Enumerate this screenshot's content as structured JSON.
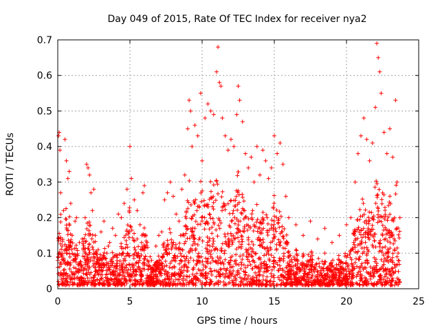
{
  "chart_data": {
    "type": "scatter",
    "title": "Day 049 of 2015, Rate Of TEC Index for receiver nya2",
    "xlabel": "GPS time / hours",
    "ylabel": "ROTI / TECUs",
    "xlim": [
      0,
      25
    ],
    "ylim": [
      0,
      0.7
    ],
    "xticks": [
      0,
      5,
      10,
      15,
      20,
      25
    ],
    "yticks": [
      0,
      0.1,
      0.2,
      0.3,
      0.4,
      0.5,
      0.6,
      0.7
    ],
    "xtick_labels": [
      "0",
      "5",
      "10",
      "15",
      "20",
      "25"
    ],
    "ytick_labels": [
      "0",
      "0.1",
      "0.2",
      "0.3",
      "0.4",
      "0.5",
      "0.6",
      "0.7"
    ],
    "grid": true,
    "marker": "+",
    "marker_color": "#ff0000",
    "x_data_range": [
      0,
      23.7
    ],
    "series": [
      {
        "values": [
          [
            0.0,
            0.06
          ],
          [
            0.05,
            0.43
          ],
          [
            0.1,
            0.44
          ],
          [
            0.15,
            0.39
          ],
          [
            0.2,
            0.27
          ],
          [
            0.3,
            0.12
          ],
          [
            0.4,
            0.22
          ],
          [
            0.5,
            0.42
          ],
          [
            0.6,
            0.36
          ],
          [
            0.7,
            0.31
          ],
          [
            0.8,
            0.33
          ],
          [
            0.9,
            0.24
          ],
          [
            1.0,
            0.15
          ],
          [
            1.1,
            0.08
          ],
          [
            1.2,
            0.19
          ],
          [
            1.3,
            0.2
          ],
          [
            1.5,
            0.07
          ],
          [
            1.7,
            0.14
          ],
          [
            1.9,
            0.2
          ],
          [
            2.0,
            0.35
          ],
          [
            2.1,
            0.34
          ],
          [
            2.2,
            0.32
          ],
          [
            2.3,
            0.27
          ],
          [
            2.4,
            0.22
          ],
          [
            2.5,
            0.28
          ],
          [
            2.6,
            0.15
          ],
          [
            2.8,
            0.11
          ],
          [
            3.0,
            0.16
          ],
          [
            3.2,
            0.19
          ],
          [
            3.4,
            0.1
          ],
          [
            3.6,
            0.13
          ],
          [
            3.8,
            0.17
          ],
          [
            4.0,
            0.15
          ],
          [
            4.2,
            0.21
          ],
          [
            4.4,
            0.2
          ],
          [
            4.6,
            0.24
          ],
          [
            4.8,
            0.28
          ],
          [
            5.0,
            0.4
          ],
          [
            5.1,
            0.31
          ],
          [
            5.3,
            0.25
          ],
          [
            5.5,
            0.22
          ],
          [
            5.7,
            0.18
          ],
          [
            5.9,
            0.27
          ],
          [
            6.0,
            0.29
          ],
          [
            6.2,
            0.13
          ],
          [
            6.4,
            0.09
          ],
          [
            6.6,
            0.06
          ],
          [
            6.8,
            0.12
          ],
          [
            7.0,
            0.15
          ],
          [
            7.2,
            0.16
          ],
          [
            7.4,
            0.25
          ],
          [
            7.6,
            0.27
          ],
          [
            7.8,
            0.3
          ],
          [
            8.0,
            0.26
          ],
          [
            8.2,
            0.21
          ],
          [
            8.4,
            0.19
          ],
          [
            8.6,
            0.28
          ],
          [
            8.8,
            0.32
          ],
          [
            9.0,
            0.45
          ],
          [
            9.1,
            0.53
          ],
          [
            9.2,
            0.5
          ],
          [
            9.3,
            0.4
          ],
          [
            9.5,
            0.46
          ],
          [
            9.7,
            0.43
          ],
          [
            9.9,
            0.55
          ],
          [
            10.0,
            0.36
          ],
          [
            10.2,
            0.48
          ],
          [
            10.4,
            0.52
          ],
          [
            10.6,
            0.5
          ],
          [
            10.8,
            0.49
          ],
          [
            11.0,
            0.61
          ],
          [
            11.1,
            0.68
          ],
          [
            11.2,
            0.58
          ],
          [
            11.3,
            0.57
          ],
          [
            11.4,
            0.48
          ],
          [
            11.6,
            0.43
          ],
          [
            11.8,
            0.39
          ],
          [
            12.0,
            0.42
          ],
          [
            12.2,
            0.4
          ],
          [
            12.4,
            0.49
          ],
          [
            12.5,
            0.57
          ],
          [
            12.6,
            0.53
          ],
          [
            12.8,
            0.47
          ],
          [
            13.0,
            0.38
          ],
          [
            13.2,
            0.34
          ],
          [
            13.4,
            0.37
          ],
          [
            13.6,
            0.3
          ],
          [
            13.8,
            0.4
          ],
          [
            14.0,
            0.32
          ],
          [
            14.2,
            0.39
          ],
          [
            14.4,
            0.36
          ],
          [
            14.6,
            0.31
          ],
          [
            14.8,
            0.34
          ],
          [
            15.0,
            0.43
          ],
          [
            15.2,
            0.38
          ],
          [
            15.4,
            0.41
          ],
          [
            15.6,
            0.35
          ],
          [
            15.8,
            0.26
          ],
          [
            16.0,
            0.2
          ],
          [
            16.5,
            0.18
          ],
          [
            17.0,
            0.15
          ],
          [
            17.5,
            0.19
          ],
          [
            18.0,
            0.14
          ],
          [
            18.5,
            0.17
          ],
          [
            19.0,
            0.13
          ],
          [
            19.5,
            0.15
          ],
          [
            20.0,
            0.18
          ],
          [
            20.3,
            0.2
          ],
          [
            20.6,
            0.3
          ],
          [
            20.8,
            0.38
          ],
          [
            21.0,
            0.43
          ],
          [
            21.2,
            0.48
          ],
          [
            21.4,
            0.42
          ],
          [
            21.6,
            0.36
          ],
          [
            21.8,
            0.41
          ],
          [
            22.0,
            0.51
          ],
          [
            22.1,
            0.69
          ],
          [
            22.2,
            0.65
          ],
          [
            22.3,
            0.61
          ],
          [
            22.4,
            0.55
          ],
          [
            22.6,
            0.44
          ],
          [
            22.8,
            0.38
          ],
          [
            23.0,
            0.45
          ],
          [
            23.2,
            0.37
          ],
          [
            23.4,
            0.53
          ],
          [
            23.5,
            0.3
          ],
          [
            23.7,
            0.2
          ],
          [
            0.3,
            0.04
          ],
          [
            1.0,
            0.03
          ],
          [
            2.0,
            0.04
          ],
          [
            3.0,
            0.03
          ],
          [
            4.0,
            0.05
          ],
          [
            5.0,
            0.04
          ],
          [
            6.3,
            0.01
          ],
          [
            7.0,
            0.02
          ],
          [
            8.0,
            0.04
          ],
          [
            9.0,
            0.05
          ],
          [
            10.0,
            0.04
          ],
          [
            11.0,
            0.05
          ],
          [
            12.0,
            0.06
          ],
          [
            13.0,
            0.04
          ],
          [
            14.0,
            0.05
          ],
          [
            15.0,
            0.06
          ],
          [
            16.0,
            0.05
          ],
          [
            17.0,
            0.03
          ],
          [
            18.0,
            0.04
          ],
          [
            19.0,
            0.02
          ],
          [
            20.0,
            0.05
          ],
          [
            21.0,
            0.03
          ],
          [
            22.0,
            0.06
          ],
          [
            23.0,
            0.04
          ],
          [
            0.5,
            0.11
          ],
          [
            1.5,
            0.13
          ],
          [
            2.5,
            0.09
          ],
          [
            3.5,
            0.12
          ],
          [
            4.5,
            0.1
          ],
          [
            5.5,
            0.14
          ],
          [
            6.5,
            0.08
          ],
          [
            7.5,
            0.11
          ],
          [
            8.5,
            0.15
          ],
          [
            9.5,
            0.17
          ],
          [
            10.5,
            0.21
          ],
          [
            11.5,
            0.24
          ],
          [
            12.5,
            0.19
          ],
          [
            13.5,
            0.22
          ],
          [
            14.5,
            0.2
          ],
          [
            15.5,
            0.16
          ],
          [
            16.5,
            0.11
          ],
          [
            17.5,
            0.09
          ],
          [
            18.5,
            0.1
          ],
          [
            19.5,
            0.08
          ],
          [
            20.5,
            0.13
          ],
          [
            21.5,
            0.17
          ],
          [
            22.5,
            0.15
          ],
          [
            23.5,
            0.09
          ]
        ]
      }
    ]
  }
}
